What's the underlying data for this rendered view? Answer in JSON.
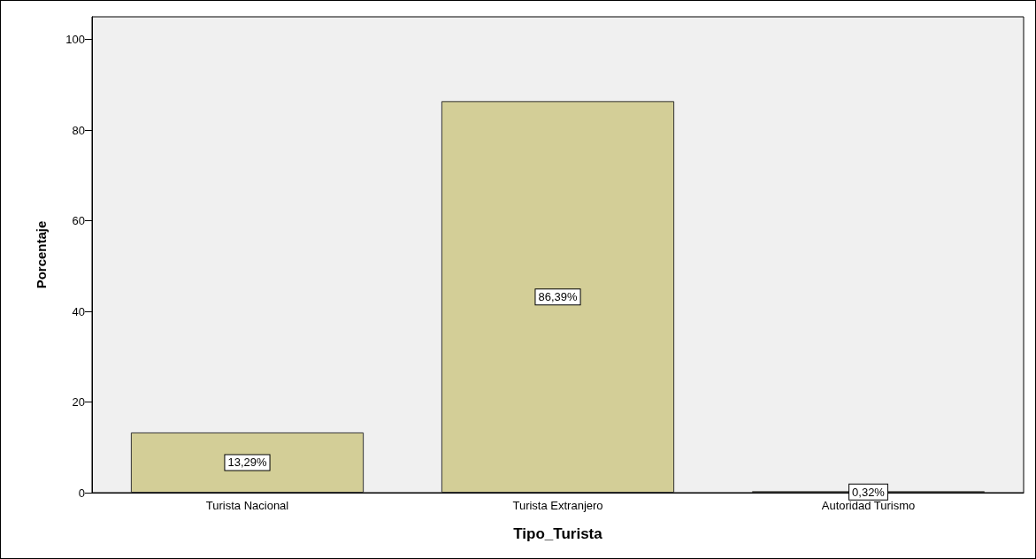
{
  "chart_data": {
    "type": "bar",
    "xlabel": "Tipo_Turista",
    "ylabel": "Porcentaje",
    "categories": [
      "Turista Nacional",
      "Turista Extranjero",
      "Autoridad Turismo"
    ],
    "values": [
      13.29,
      86.39,
      0.32
    ],
    "value_labels": [
      "13,29%",
      "86,39%",
      "0,32%"
    ],
    "color": "#d3ce97",
    "ylim": [
      0,
      105
    ],
    "yticks": [
      0,
      20,
      40,
      60,
      80,
      100
    ],
    "grid": false
  }
}
